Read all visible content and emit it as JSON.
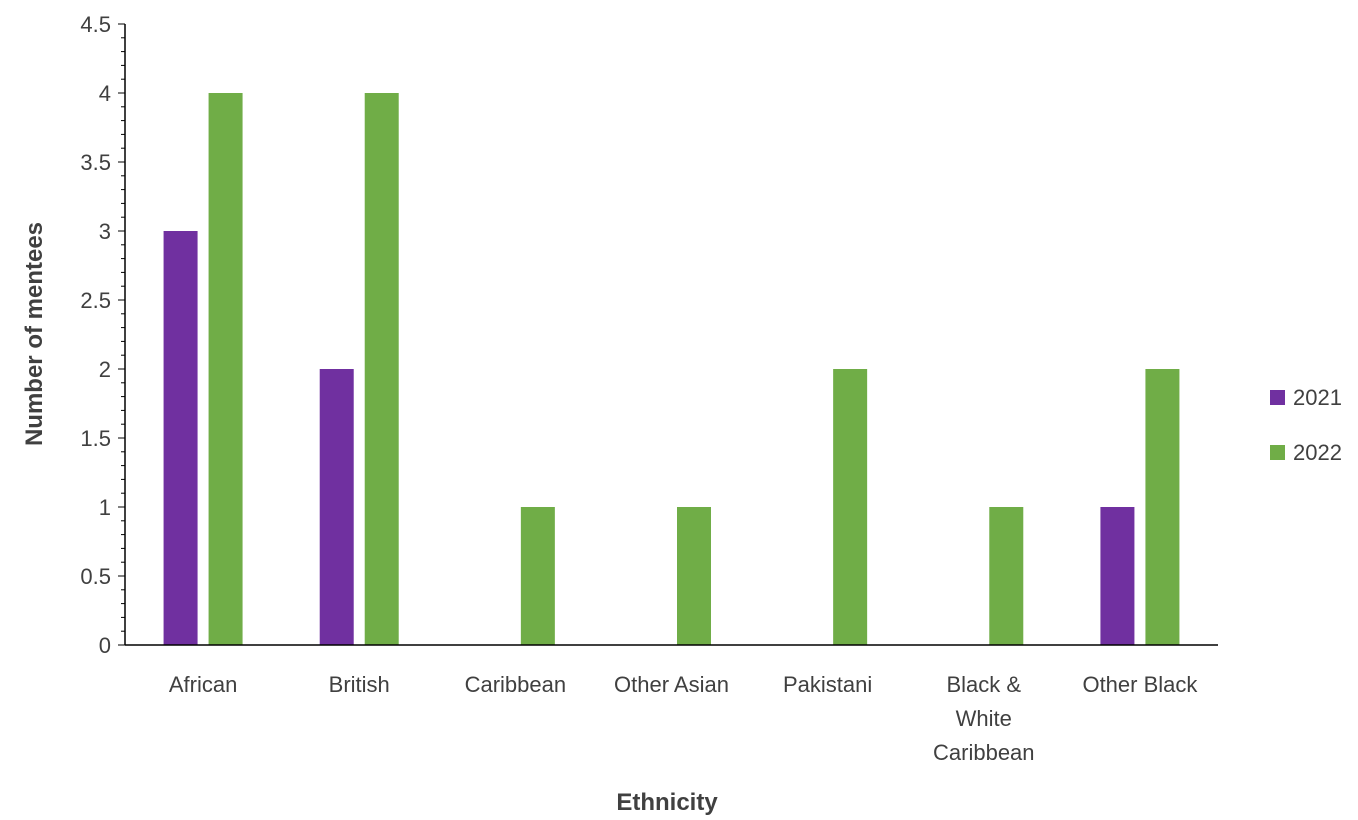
{
  "chart_data": {
    "type": "bar",
    "categories": [
      [
        "African"
      ],
      [
        "British"
      ],
      [
        "Caribbean"
      ],
      [
        "Other Asian"
      ],
      [
        "Pakistani"
      ],
      [
        "Black &",
        "White",
        "Caribbean"
      ],
      [
        "Other Black"
      ]
    ],
    "series": [
      {
        "name": "2021",
        "color": "#7030a0",
        "values": [
          3,
          2,
          0,
          0,
          0,
          0,
          1
        ]
      },
      {
        "name": "2022",
        "color": "#70ad47",
        "values": [
          4,
          4,
          1,
          1,
          2,
          1,
          2
        ]
      }
    ],
    "xlabel": "Ethnicity",
    "ylabel": "Number of mentees",
    "ylim": [
      0,
      4.5
    ],
    "yticks": [
      "0",
      "0.5",
      "1",
      "1.5",
      "2",
      "2.5",
      "3",
      "3.5",
      "4",
      "4.5"
    ],
    "grid": false,
    "legend": "right"
  }
}
